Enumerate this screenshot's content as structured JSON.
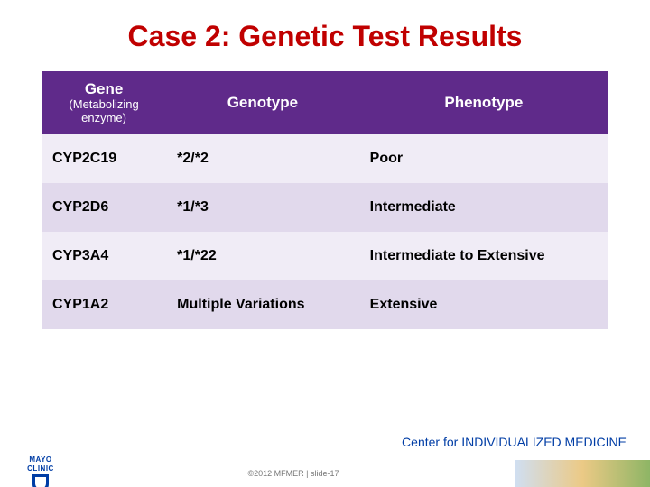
{
  "title": {
    "text": "Case 2: Genetic Test Results",
    "color": "#c00000",
    "fontsize": 32
  },
  "table": {
    "header_bg": "#5f2a8a",
    "header_text_color": "#ffffff",
    "columns": {
      "gene": {
        "label": "Gene",
        "sublabel": "(Metabolizing enzyme)"
      },
      "genotype": {
        "label": "Genotype"
      },
      "phenotype": {
        "label": "Phenotype"
      }
    },
    "row_alt_colors": [
      "#f0ecf6",
      "#e1d9ec"
    ],
    "rows": [
      {
        "gene": "CYP2C19",
        "genotype": "*2/*2",
        "phenotype": "Poor"
      },
      {
        "gene": "CYP2D6",
        "genotype": "*1/*3",
        "phenotype": "Intermediate"
      },
      {
        "gene": "CYP3A4",
        "genotype": "*1/*22",
        "phenotype": "Intermediate to Extensive"
      },
      {
        "gene": "CYP1A2",
        "genotype": "Multiple Variations",
        "phenotype": "Extensive"
      }
    ]
  },
  "center_label": {
    "prefix": "Center for ",
    "highlight": "INDIVIDUALIZED MEDICINE",
    "prefix_color": "#003da5",
    "highlight_color": "#003da5"
  },
  "footer": {
    "logo_line1": "MAYO",
    "logo_line2": "CLINIC",
    "copyright": "©2012 MFMER  |  slide-17"
  }
}
